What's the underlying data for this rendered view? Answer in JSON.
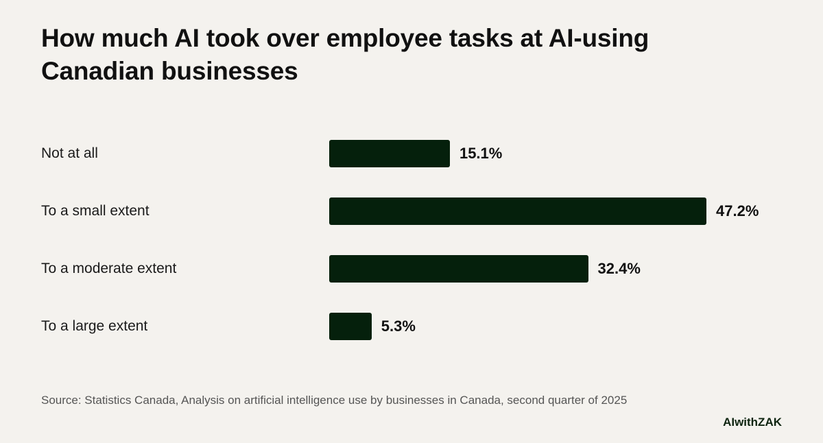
{
  "title": "How much AI took over employee tasks at AI-using Canadian businesses",
  "source": "Source: Statistics Canada, Analysis on artificial intelligence use by businesses in Canada, second quarter of 2025",
  "brand": "AIwithZAK",
  "colors": {
    "background": "#f4f2ee",
    "bar": "#05200c"
  },
  "chart_data": {
    "type": "bar",
    "orientation": "horizontal",
    "categories": [
      "Not at all",
      "To a small extent",
      "To a moderate extent",
      "To a large extent"
    ],
    "values": [
      15.1,
      47.2,
      32.4,
      5.3
    ],
    "value_labels": [
      "15.1%",
      "47.2%",
      "32.4%",
      "5.3%"
    ],
    "title": "How much AI took over employee tasks at AI-using Canadian businesses",
    "xlabel": "",
    "ylabel": "",
    "grid": false
  }
}
